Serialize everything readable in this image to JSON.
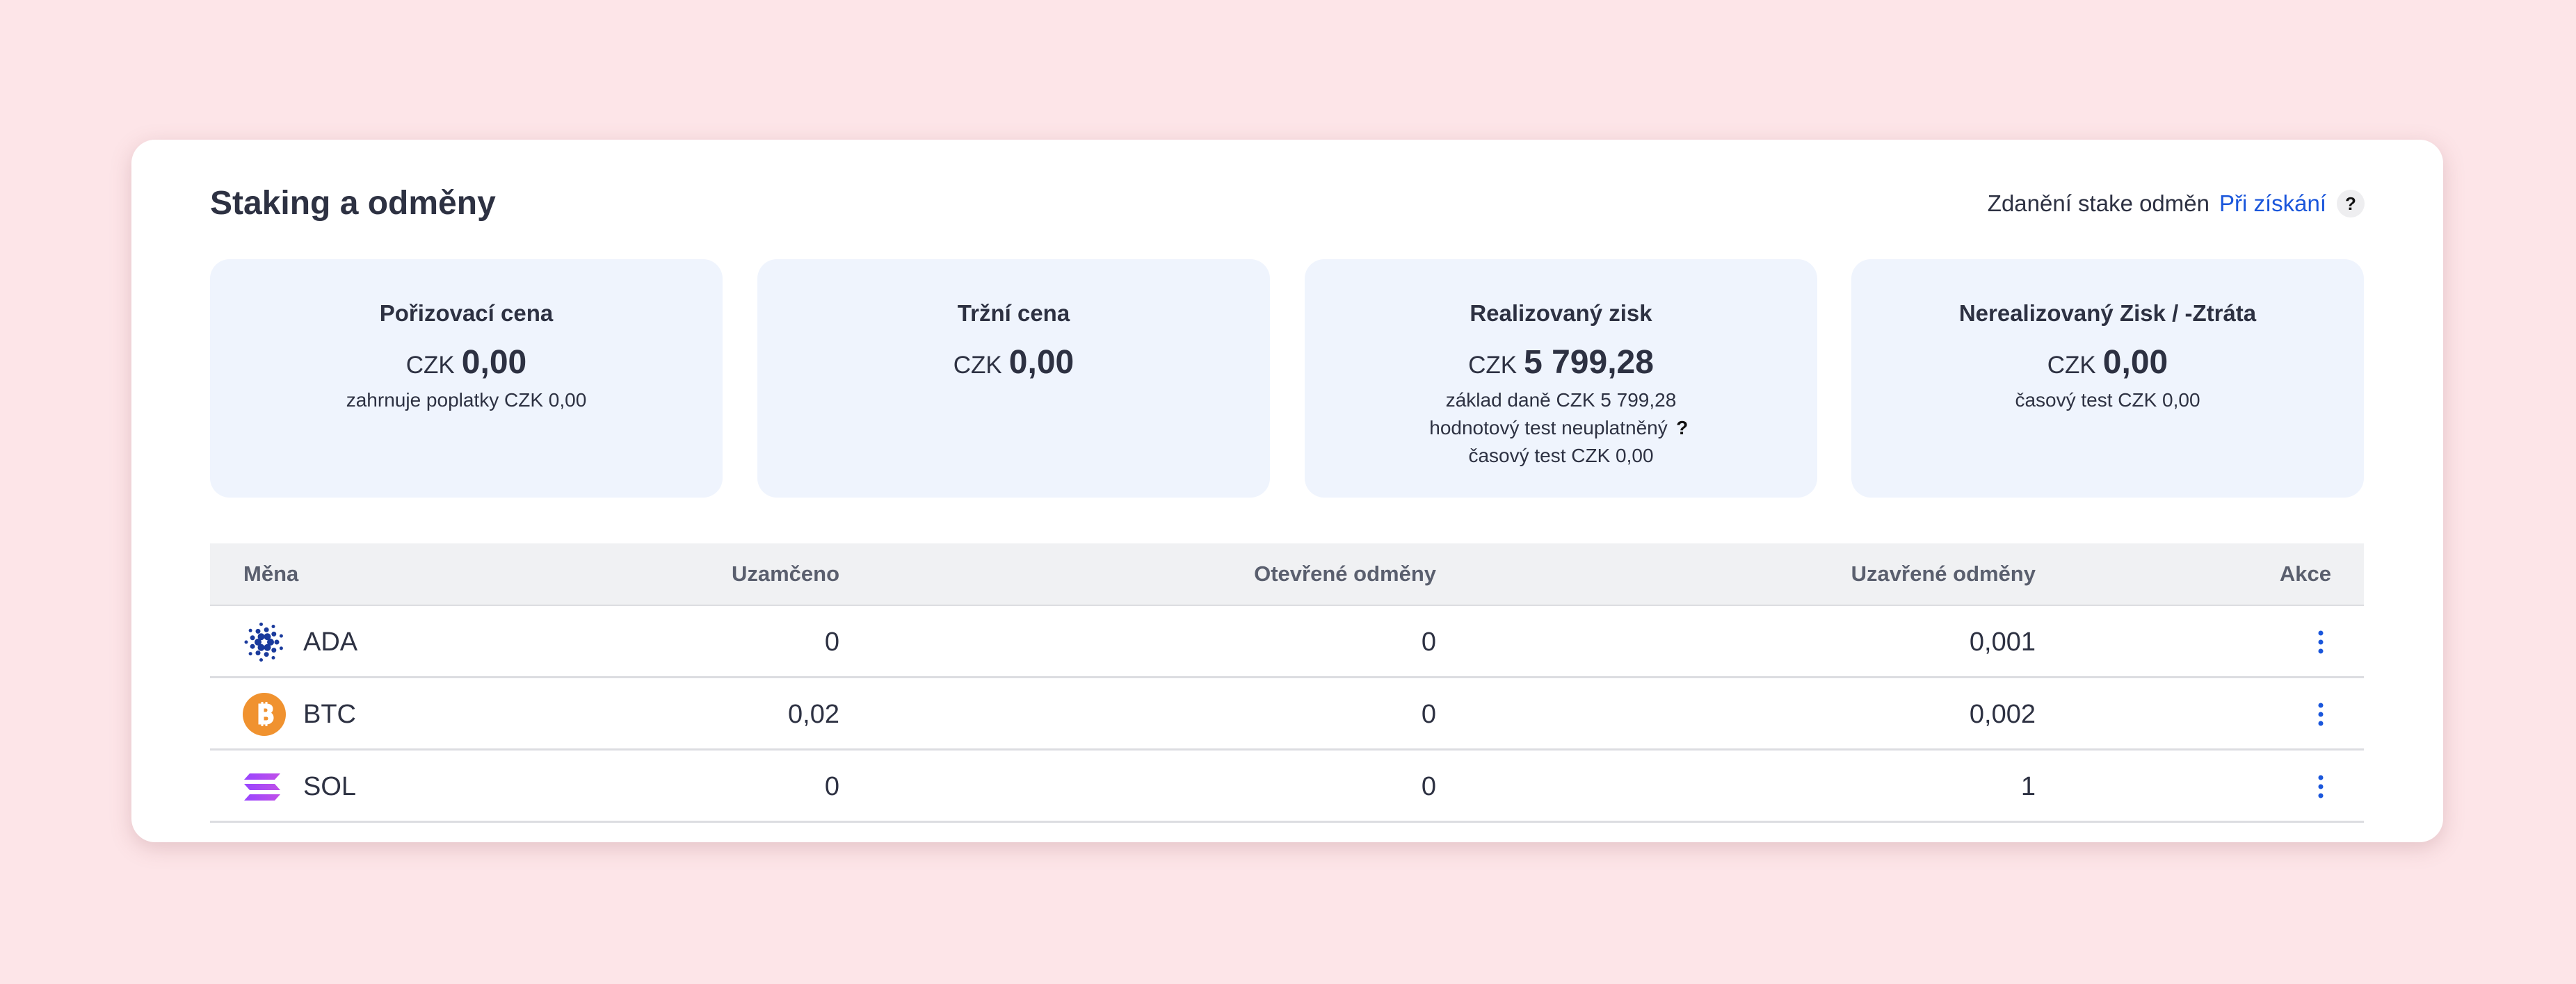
{
  "header": {
    "title": "Staking a odměny",
    "tax_label": "Zdanění stake odměn",
    "tax_value": "Při získání",
    "help": "?"
  },
  "cards": [
    {
      "title": "Pořizovací cena",
      "currency": "CZK",
      "amount": "0,00",
      "notes": [
        {
          "text": "zahrnuje poplatky CZK 0,00"
        }
      ]
    },
    {
      "title": "Tržní cena",
      "currency": "CZK",
      "amount": "0,00",
      "notes": []
    },
    {
      "title": "Realizovaný zisk",
      "currency": "CZK",
      "amount": "5 799,28",
      "notes": [
        {
          "text": "základ daně CZK 5 799,28"
        },
        {
          "text": "hodnotový test neuplatněný",
          "help": "?"
        },
        {
          "text": "časový test CZK 0,00"
        }
      ]
    },
    {
      "title": "Nerealizovaný Zisk / -Ztráta",
      "currency": "CZK",
      "amount": "0,00",
      "notes": [
        {
          "text": "časový test CZK 0,00"
        }
      ]
    }
  ],
  "table": {
    "columns": [
      "Měna",
      "Uzamčeno",
      "Otevřené odměny",
      "Uzavřené odměny",
      "Akce"
    ],
    "rows": [
      [
        "ADA",
        "0",
        "0",
        "0,001"
      ],
      [
        "BTC",
        "0,02",
        "0",
        "0,002"
      ],
      [
        "SOL",
        "0",
        "0",
        "1"
      ]
    ]
  }
}
